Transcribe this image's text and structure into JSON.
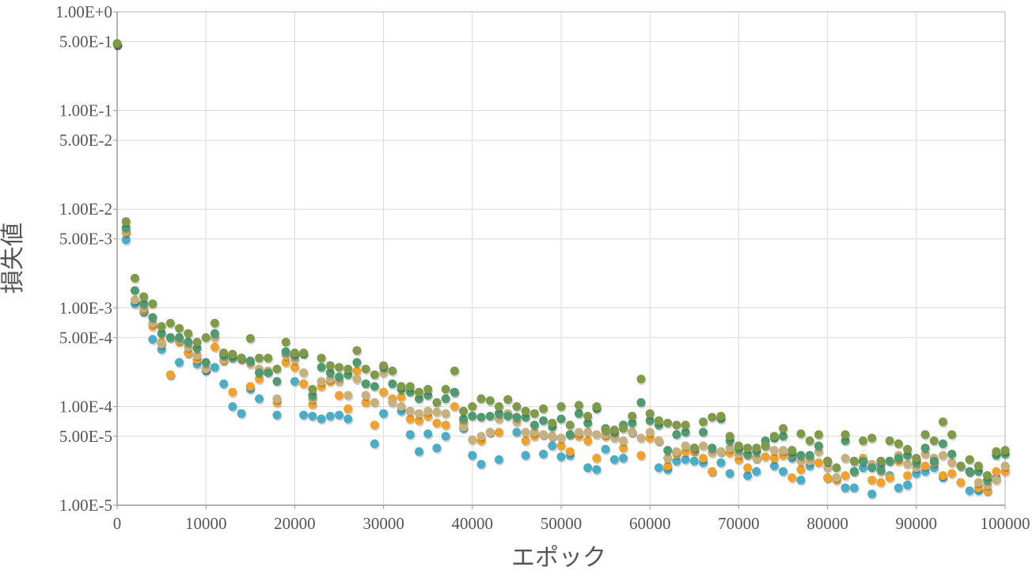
{
  "chart_data": {
    "type": "scatter",
    "title": "",
    "xlabel": "エポック",
    "ylabel": "損失値",
    "xlim": [
      0,
      100000
    ],
    "ylim": [
      1e-05,
      1
    ],
    "yscale": "log",
    "grid": true,
    "legend": "none",
    "x_ticks": [
      0,
      10000,
      20000,
      30000,
      40000,
      50000,
      60000,
      70000,
      80000,
      90000,
      100000
    ],
    "x_tick_labels": [
      "0",
      "10000",
      "20000",
      "30000",
      "40000",
      "50000",
      "60000",
      "70000",
      "80000",
      "90000",
      "100000"
    ],
    "y_ticks": [
      1,
      0.5,
      0.1,
      0.05,
      0.01,
      0.005,
      0.001,
      0.0005,
      0.0001,
      5e-05,
      1e-05
    ],
    "y_tick_labels": [
      "1.00E+0",
      "5.00E-1",
      "1.00E-1",
      "5.00E-2",
      "1.00E-2",
      "5.00E-3",
      "1.00E-3",
      "5.00E-4",
      "1.00E-4",
      "5.00E-5",
      "1.00E-5"
    ],
    "series": [
      {
        "color": "#4bacc6",
        "x": [
          0,
          1000,
          2000,
          3000,
          4000,
          5000,
          6000,
          7000,
          8000,
          9000,
          10000,
          11000,
          12000,
          13000,
          14000,
          15000,
          16000,
          18000,
          20000,
          21000,
          22000,
          23000,
          24000,
          25000,
          26000,
          29000,
          30000,
          32000,
          33000,
          34000,
          35000,
          36000,
          37000,
          39000,
          40000,
          41000,
          43000,
          45000,
          46000,
          48000,
          49000,
          50000,
          51000,
          53000,
          54000,
          55000,
          56000,
          57000,
          58000,
          61000,
          62000,
          63000,
          64000,
          65000,
          66000,
          67000,
          68000,
          69000,
          71000,
          72000,
          74000,
          75000,
          76000,
          77000,
          78000,
          80000,
          81000,
          82000,
          83000,
          84000,
          85000,
          86000,
          87000,
          88000,
          89000,
          90000,
          91000,
          92000,
          93000,
          96000,
          97000,
          98000,
          99000
        ],
        "y": [
          0.47,
          0.0049,
          0.0011,
          0.0009,
          0.00048,
          0.00038,
          0.00021,
          0.00028,
          0.00035,
          0.00027,
          0.00023,
          0.00025,
          0.00017,
          0.0001,
          8.5e-05,
          0.00015,
          0.00012,
          8.2e-05,
          0.00018,
          8.2e-05,
          8e-05,
          7.5e-05,
          8e-05,
          8.2e-05,
          7.5e-05,
          4.2e-05,
          8.5e-05,
          9e-05,
          5.2e-05,
          3.5e-05,
          5.3e-05,
          3.8e-05,
          5e-05,
          6e-05,
          3.2e-05,
          2.6e-05,
          2.9e-05,
          5.5e-05,
          3.2e-05,
          3.3e-05,
          4e-05,
          3.1e-05,
          3.2e-05,
          2.4e-05,
          2.3e-05,
          3.7e-05,
          2.9e-05,
          3e-05,
          5.5e-05,
          2.4e-05,
          2.3e-05,
          2.8e-05,
          2.9e-05,
          2.8e-05,
          2.7e-05,
          2.2e-05,
          2.7e-05,
          2.1e-05,
          2e-05,
          2.2e-05,
          2.5e-05,
          2.2e-05,
          3e-05,
          1.8e-05,
          2.5e-05,
          1.9e-05,
          1.9e-05,
          1.5e-05,
          1.5e-05,
          2.4e-05,
          1.3e-05,
          2.6e-05,
          2e-05,
          1.5e-05,
          1.6e-05,
          2.1e-05,
          2.2e-05,
          2.4e-05,
          1.9e-05,
          1.4e-05,
          1.4e-05,
          1.4e-05,
          1.9e-05
        ]
      },
      {
        "color": "#f0a22e",
        "x": [
          0,
          1000,
          2000,
          3000,
          4000,
          5000,
          6000,
          7000,
          8000,
          9000,
          10000,
          11000,
          12000,
          13000,
          15000,
          16000,
          17000,
          18000,
          19000,
          20000,
          21000,
          22000,
          23000,
          24000,
          25000,
          26000,
          27000,
          28000,
          29000,
          30000,
          31000,
          32000,
          33000,
          34000,
          35000,
          36000,
          37000,
          38000,
          39000,
          41000,
          42000,
          43000,
          44000,
          46000,
          47000,
          48000,
          49000,
          50000,
          51000,
          52000,
          53000,
          54000,
          55000,
          56000,
          57000,
          59000,
          60000,
          61000,
          62000,
          63000,
          64000,
          65000,
          66000,
          67000,
          68000,
          69000,
          70000,
          71000,
          72000,
          73000,
          74000,
          75000,
          76000,
          77000,
          78000,
          79000,
          80000,
          81000,
          82000,
          83000,
          84000,
          85000,
          86000,
          87000,
          88000,
          89000,
          90000,
          91000,
          92000,
          93000,
          94000,
          95000,
          96000,
          97000,
          98000,
          99000,
          100000
        ],
        "y": [
          0.47,
          0.0058,
          0.0012,
          0.00095,
          0.00065,
          0.00045,
          0.00021,
          0.00045,
          0.00035,
          0.0003,
          0.00024,
          0.0004,
          0.00029,
          0.00014,
          0.00016,
          0.00019,
          0.00023,
          0.00011,
          0.00028,
          0.00025,
          0.00017,
          0.000105,
          0.00016,
          0.00018,
          0.00013,
          9.5e-05,
          0.00023,
          0.00011,
          6.5e-05,
          0.00014,
          0.00012,
          0.000125,
          7.5e-05,
          7.2e-05,
          8e-05,
          6.8e-05,
          6.5e-05,
          0.0001,
          6.8e-05,
          4.5e-05,
          5.5e-05,
          5.5e-05,
          8.5e-05,
          4.5e-05,
          5e-05,
          5.2e-05,
          5e-05,
          4e-05,
          3.5e-05,
          5e-05,
          4.5e-05,
          3e-05,
          5e-05,
          5e-05,
          3.8e-05,
          3.2e-05,
          4.8e-05,
          4.5e-05,
          2.5e-05,
          3.3e-05,
          3.5e-05,
          3.5e-05,
          3e-05,
          2.2e-05,
          3.5e-05,
          3.4e-05,
          2.9e-05,
          2.4e-05,
          3e-05,
          3.1e-05,
          3e-05,
          3.2e-05,
          1.9e-05,
          2.3e-05,
          3e-05,
          2.7e-05,
          1.9e-05,
          1.8e-05,
          2e-05,
          2.2e-05,
          3e-05,
          1.8e-05,
          1.7e-05,
          1.9e-05,
          2.8e-05,
          2e-05,
          2.9e-05,
          2.5e-05,
          2.7e-05,
          2e-05,
          2.1e-05,
          1.7e-05,
          2.2e-05,
          1.5e-05,
          1.4e-05,
          2.2e-05,
          2.2e-05
        ]
      },
      {
        "color": "#c6b07e",
        "x": [
          0,
          1000,
          2000,
          3000,
          4000,
          5000,
          6000,
          7000,
          8000,
          9000,
          10000,
          11000,
          12000,
          13000,
          14000,
          15000,
          16000,
          17000,
          18000,
          19000,
          20000,
          21000,
          22000,
          23000,
          24000,
          25000,
          26000,
          27000,
          28000,
          29000,
          30000,
          31000,
          32000,
          33000,
          34000,
          35000,
          36000,
          37000,
          38000,
          39000,
          40000,
          41000,
          42000,
          43000,
          44000,
          45000,
          46000,
          47000,
          48000,
          49000,
          50000,
          51000,
          52000,
          53000,
          54000,
          55000,
          56000,
          57000,
          58000,
          59000,
          60000,
          61000,
          62000,
          63000,
          64000,
          65000,
          66000,
          67000,
          68000,
          69000,
          70000,
          71000,
          72000,
          73000,
          74000,
          75000,
          76000,
          77000,
          78000,
          79000,
          80000,
          81000,
          82000,
          83000,
          84000,
          85000,
          86000,
          87000,
          88000,
          89000,
          90000,
          91000,
          92000,
          93000,
          94000,
          95000,
          96000,
          97000,
          98000,
          99000,
          100000
        ],
        "y": [
          0.47,
          0.006,
          0.0012,
          0.001,
          0.0007,
          0.00043,
          0.0005,
          0.00047,
          0.0004,
          0.00033,
          0.00024,
          0.0005,
          0.0003,
          0.00032,
          0.0003,
          0.00027,
          0.00024,
          0.00023,
          0.00012,
          0.00033,
          0.0003,
          0.00022,
          0.00012,
          0.00018,
          0.00019,
          0.00018,
          0.00013,
          0.00019,
          0.00013,
          0.00011,
          0.00022,
          0.00011,
          0.0001,
          9e-05,
          8.5e-05,
          9e-05,
          8.8e-05,
          8.5e-05,
          0.00014,
          6.2e-05,
          4.6e-05,
          5e-05,
          5.5e-05,
          7.5e-05,
          8.5e-05,
          7e-05,
          5.5e-05,
          5.5e-05,
          5.2e-05,
          5e-05,
          4.8e-05,
          5.2e-05,
          5.5e-05,
          5.5e-05,
          5.2e-05,
          5.2e-05,
          4.8e-05,
          4.5e-05,
          5.5e-05,
          4.8e-05,
          5.5e-05,
          4.5e-05,
          3e-05,
          3.5e-05,
          4e-05,
          3.6e-05,
          4e-05,
          3.4e-05,
          3.5e-05,
          3.8e-05,
          3.3e-05,
          3.2e-05,
          3e-05,
          4e-05,
          3.6e-05,
          3.6e-05,
          3.2e-05,
          2.8e-05,
          2.8e-05,
          3.5e-05,
          2.4e-05,
          1.9e-05,
          3e-05,
          2.8e-05,
          2.9e-05,
          2.6e-05,
          2.2e-05,
          2.8e-05,
          3.2e-05,
          2.6e-05,
          2.4e-05,
          3.3e-05,
          3e-05,
          3.2e-05,
          2.7e-05,
          2.5e-05,
          2.2e-05,
          1.7e-05,
          1.6e-05,
          1.8e-05,
          2.5e-05
        ]
      },
      {
        "color": "#4f9a6e",
        "x": [
          0,
          1000,
          2000,
          3000,
          4000,
          5000,
          6000,
          7000,
          8000,
          9000,
          10000,
          11000,
          12000,
          13000,
          14000,
          15000,
          16000,
          17000,
          18000,
          19000,
          20000,
          21000,
          22000,
          23000,
          24000,
          25000,
          26000,
          27000,
          28000,
          29000,
          30000,
          31000,
          32000,
          33000,
          34000,
          35000,
          37000,
          38000,
          39000,
          40000,
          41000,
          42000,
          43000,
          44000,
          45000,
          46000,
          47000,
          48000,
          49000,
          50000,
          51000,
          52000,
          53000,
          54000,
          55000,
          56000,
          57000,
          58000,
          59000,
          60000,
          61000,
          62000,
          63000,
          64000,
          65000,
          66000,
          67000,
          68000,
          69000,
          70000,
          71000,
          72000,
          73000,
          74000,
          75000,
          76000,
          77000,
          78000,
          79000,
          80000,
          82000,
          83000,
          84000,
          85000,
          86000,
          87000,
          88000,
          89000,
          90000,
          91000,
          92000,
          93000,
          94000,
          96000,
          97000,
          98000,
          99000,
          100000
        ],
        "y": [
          0.47,
          0.0065,
          0.0015,
          0.0011,
          0.0008,
          0.00055,
          0.0005,
          0.0005,
          0.00045,
          0.00039,
          0.00028,
          0.00055,
          0.00033,
          0.00031,
          0.00031,
          0.00029,
          0.00022,
          0.00022,
          0.00018,
          0.00036,
          0.00033,
          0.00034,
          0.00013,
          0.00025,
          0.00022,
          0.0002,
          0.00021,
          0.00028,
          0.00017,
          0.00016,
          0.00025,
          0.00017,
          0.00015,
          0.00014,
          0.00012,
          0.00013,
          0.00012,
          0.00014,
          7.5e-05,
          8e-05,
          7.8e-05,
          8e-05,
          8.5e-05,
          8e-05,
          7.8e-05,
          7.8e-05,
          6.5e-05,
          7.2e-05,
          6.2e-05,
          7.5e-05,
          5.2e-05,
          8.5e-05,
          6.8e-05,
          9.5e-05,
          6e-05,
          5.5e-05,
          6.5e-05,
          6.8e-05,
          0.00011,
          7.2e-05,
          6.5e-05,
          3.6e-05,
          5.2e-05,
          5.5e-05,
          3.8e-05,
          5.5e-05,
          3.8e-05,
          7.5e-05,
          4.5e-05,
          3.7e-05,
          3.3e-05,
          3.5e-05,
          4.5e-05,
          4.8e-05,
          5e-05,
          3.3e-05,
          3.2e-05,
          3.2e-05,
          4e-05,
          2.8e-05,
          4.5e-05,
          2.2e-05,
          2.8e-05,
          2.4e-05,
          2.3e-05,
          2.8e-05,
          3e-05,
          3.2e-05,
          2.7e-05,
          3.8e-05,
          2.8e-05,
          4.2e-05,
          3.3e-05,
          2.2e-05,
          2.2e-05,
          1.8e-05,
          3.2e-05,
          3.3e-05
        ]
      },
      {
        "color": "#7f9a48",
        "x": [
          0,
          1000,
          2000,
          3000,
          4000,
          5000,
          6000,
          7000,
          8000,
          9000,
          10000,
          11000,
          12000,
          13000,
          14000,
          15000,
          16000,
          17000,
          18000,
          19000,
          20000,
          21000,
          22000,
          23000,
          24000,
          25000,
          26000,
          27000,
          28000,
          29000,
          30000,
          31000,
          32000,
          33000,
          34000,
          35000,
          36000,
          37000,
          38000,
          39000,
          40000,
          41000,
          42000,
          43000,
          44000,
          45000,
          46000,
          47000,
          48000,
          49000,
          50000,
          51000,
          52000,
          53000,
          54000,
          55000,
          56000,
          57000,
          58000,
          59000,
          60000,
          61000,
          62000,
          63000,
          64000,
          65000,
          66000,
          67000,
          68000,
          69000,
          70000,
          71000,
          72000,
          73000,
          74000,
          75000,
          76000,
          77000,
          78000,
          79000,
          80000,
          81000,
          82000,
          83000,
          84000,
          85000,
          86000,
          87000,
          88000,
          89000,
          90000,
          91000,
          92000,
          93000,
          94000,
          95000,
          96000,
          97000,
          98000,
          99000,
          100000
        ],
        "y": [
          0.48,
          0.0075,
          0.002,
          0.0013,
          0.0011,
          0.00065,
          0.0007,
          0.00062,
          0.00055,
          0.00045,
          0.0005,
          0.0007,
          0.00035,
          0.00034,
          0.00031,
          0.00049,
          0.00031,
          0.00031,
          0.00024,
          0.00045,
          0.00035,
          0.00035,
          0.00015,
          0.00031,
          0.00026,
          0.00025,
          0.00024,
          0.00037,
          0.00024,
          0.00021,
          0.00026,
          0.00023,
          0.00016,
          0.00016,
          0.00014,
          0.00015,
          0.00011,
          0.00015,
          0.00023,
          9e-05,
          0.0001,
          0.00012,
          0.000115,
          0.0001,
          0.000118,
          0.0001,
          9e-05,
          8.5e-05,
          9.5e-05,
          6.8e-05,
          0.0001,
          6.5e-05,
          0.000103,
          8e-05,
          0.0001,
          5.8e-05,
          5.8e-05,
          6e-05,
          8e-05,
          0.00019,
          8.5e-05,
          7.2e-05,
          6.8e-05,
          6.5e-05,
          6.5e-05,
          3.8e-05,
          7e-05,
          7.8e-05,
          8e-05,
          5e-05,
          4e-05,
          3.8e-05,
          3.8e-05,
          4e-05,
          5e-05,
          6e-05,
          3.6e-05,
          5.3e-05,
          4.5e-05,
          5.2e-05,
          2.8e-05,
          2.4e-05,
          5.2e-05,
          2.8e-05,
          4.5e-05,
          4.8e-05,
          2.8e-05,
          4.5e-05,
          4.2e-05,
          3.7e-05,
          3e-05,
          5.2e-05,
          4.5e-05,
          7e-05,
          5.2e-05,
          2.5e-05,
          2.9e-05,
          2.5e-05,
          2e-05,
          3.5e-05,
          3.6e-05
        ]
      }
    ]
  }
}
